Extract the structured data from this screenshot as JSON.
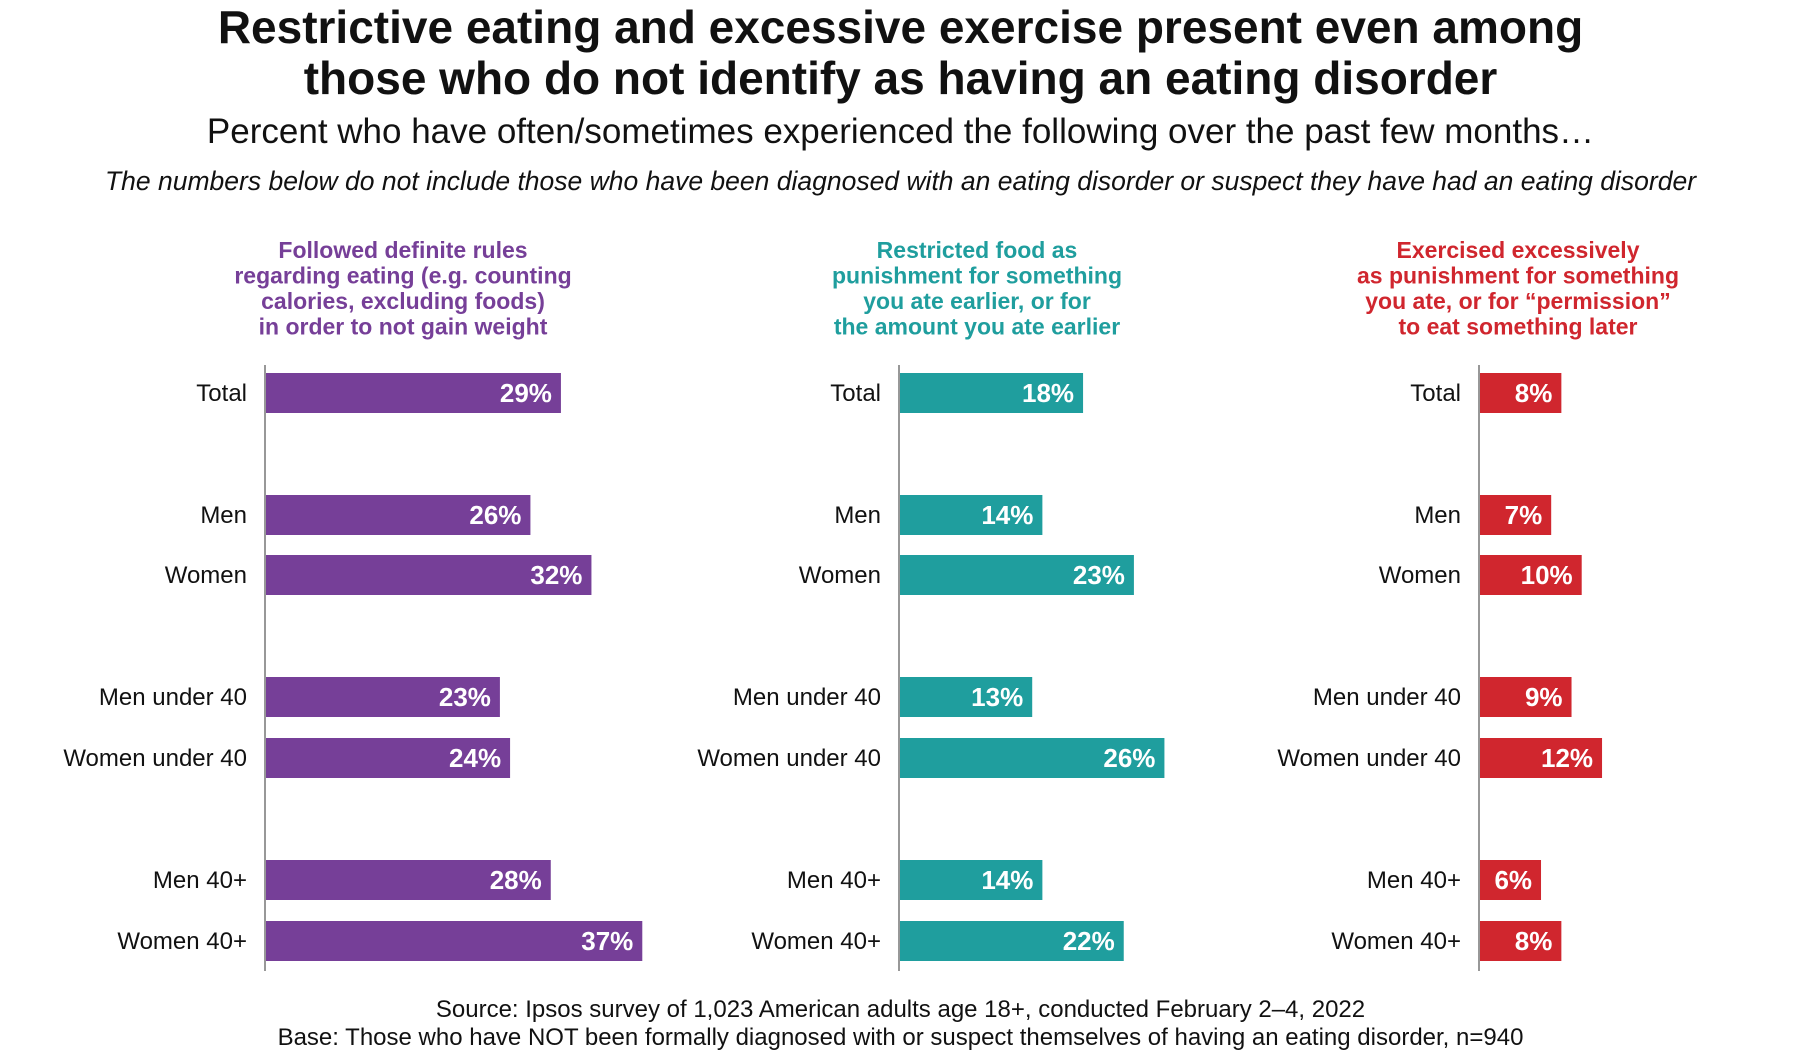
{
  "title_lines": [
    "Restrictive eating and excessive exercise present even among",
    "those who do not identify as having an eating disorder"
  ],
  "subtitle": "Percent who have often/sometimes experienced the following over the past few months…",
  "note": "The numbers below do not include those who have been diagnosed with an eating disorder or suspect they have had an eating disorder",
  "footer": {
    "source": "Source: Ipsos survey of 1,023 American adults age 18+, conducted February 2–4, 2022",
    "base": "Base: Those who have NOT been formally diagnosed with or suspect themselves of having an eating disorder, n=940"
  },
  "chart_data": [
    {
      "type": "bar",
      "orientation": "horizontal",
      "title_lines": [
        "Followed definite rules",
        "regarding eating (e.g. counting",
        "calories, excluding foods)",
        "in order to not gain weight"
      ],
      "color": "#763f98",
      "categories": [
        "Total",
        "Men",
        "Women",
        "Men under 40",
        "Women under 40",
        "Men 40+",
        "Women 40+"
      ],
      "values": [
        29,
        26,
        32,
        23,
        24,
        28,
        37
      ],
      "unit": "%"
    },
    {
      "type": "bar",
      "orientation": "horizontal",
      "title_lines": [
        "Restricted food as",
        "punishment for something",
        "you ate earlier, or for",
        "the amount you ate earlier"
      ],
      "color": "#1f9e9e",
      "categories": [
        "Total",
        "Men",
        "Women",
        "Men under 40",
        "Women under 40",
        "Men 40+",
        "Women 40+"
      ],
      "values": [
        18,
        14,
        23,
        13,
        26,
        14,
        22
      ],
      "unit": "%"
    },
    {
      "type": "bar",
      "orientation": "horizontal",
      "title_lines": [
        "Exercised excessively",
        "as punishment for something",
        "you ate, or for “permission”",
        "to eat something later"
      ],
      "color": "#d0262e",
      "categories": [
        "Total",
        "Men",
        "Women",
        "Men under 40",
        "Women under 40",
        "Men 40+",
        "Women 40+"
      ],
      "values": [
        8,
        7,
        10,
        9,
        12,
        6,
        8
      ],
      "unit": "%"
    }
  ]
}
